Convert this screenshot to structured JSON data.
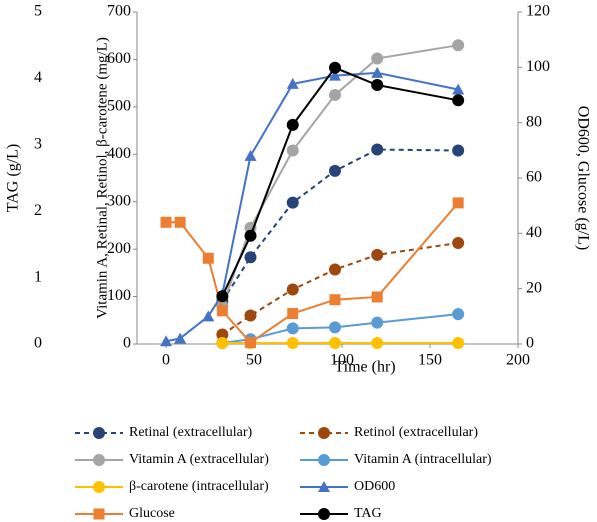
{
  "chart_data": {
    "type": "line",
    "xlabel": "Time (hr)",
    "ylabel": "Vitamin A, Retinal, Retinol, β-carotene (mg/L)",
    "y2label": "OD600, Glucose (g/L)",
    "y3label": "TAG (g/L)",
    "x": [
      0,
      8,
      24,
      32,
      48,
      72,
      96,
      120,
      166
    ],
    "xlim": [
      -16.5,
      200
    ],
    "xticks": [
      0,
      50,
      100,
      150,
      200
    ],
    "ylim": [
      0,
      700
    ],
    "yticks": [
      0,
      100,
      200,
      300,
      400,
      500,
      600,
      700
    ],
    "y2lim": [
      0,
      120
    ],
    "y2ticks": [
      0,
      20,
      40,
      60,
      80,
      100,
      120
    ],
    "y3lim": [
      0,
      5
    ],
    "y3ticks": [
      0,
      1,
      2,
      3,
      4,
      5
    ],
    "series": [
      {
        "name": "Retinal (extracellular)",
        "color": "#264478",
        "marker": "circle",
        "dashed": true,
        "axis": "y",
        "values": [
          null,
          null,
          null,
          90,
          183,
          298,
          365,
          410,
          408
        ]
      },
      {
        "name": "Retinol (extracellular)",
        "color": "#9e480e",
        "marker": "circle",
        "dashed": true,
        "axis": "y",
        "values": [
          null,
          null,
          null,
          20,
          60,
          115,
          157,
          188,
          213
        ]
      },
      {
        "name": "Vitamin A (extracellular)",
        "color": "#a5a5a5",
        "marker": "circle",
        "dashed": false,
        "axis": "y",
        "values": [
          null,
          null,
          null,
          80,
          245,
          408,
          525,
          602,
          630
        ]
      },
      {
        "name": "Vitamin A (intracellular)",
        "color": "#5b9bd5",
        "marker": "circle",
        "dashed": false,
        "axis": "y",
        "values": [
          null,
          null,
          null,
          2,
          10,
          33,
          35,
          45,
          63
        ]
      },
      {
        "name": "β-carotene (intracellular)",
        "color": "#ffc000",
        "marker": "circle",
        "dashed": false,
        "axis": "y",
        "values": [
          null,
          null,
          null,
          2,
          2,
          2,
          2,
          2,
          2
        ]
      },
      {
        "name": "OD600",
        "color": "#4472c4",
        "marker": "triangle",
        "dashed": false,
        "axis": "y2",
        "values": [
          1,
          2,
          10,
          18,
          68,
          94,
          97,
          98,
          92
        ]
      },
      {
        "name": "Glucose",
        "color": "#ed7d31",
        "marker": "square",
        "dashed": false,
        "axis": "y2",
        "values": [
          44,
          44,
          31,
          12,
          0.5,
          11,
          16,
          17,
          51
        ]
      },
      {
        "name": "TAG",
        "color": "#000000",
        "marker": "circle",
        "dashed": false,
        "axis": "y3",
        "values": [
          null,
          null,
          null,
          0.72,
          1.63,
          3.3,
          4.16,
          3.9,
          3.67
        ]
      }
    ]
  }
}
